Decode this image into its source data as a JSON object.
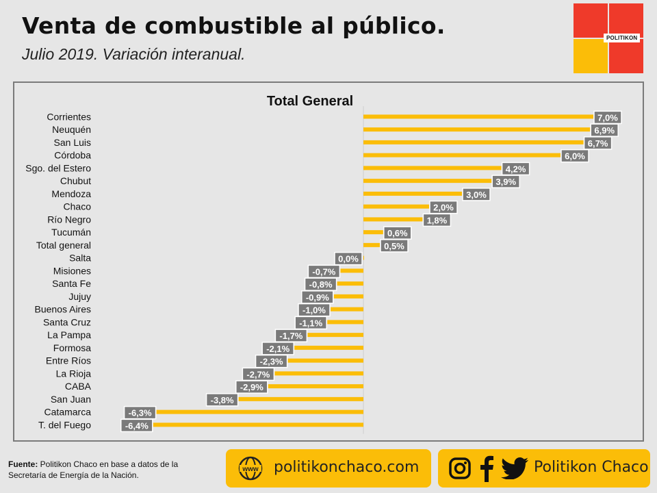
{
  "header": {
    "title": "Venta de combustible al público.",
    "subtitle": "Julio 2019. Variación interanual."
  },
  "logo": {
    "text": "POLITIKON"
  },
  "chart_data": {
    "type": "bar",
    "orientation": "horizontal",
    "title": "Total General",
    "categories": [
      "Corrientes",
      "Neuquén",
      "San Luis",
      "Córdoba",
      "Sgo. del Estero",
      "Chubut",
      "Mendoza",
      "Chaco",
      "Río Negro",
      "Tucumán",
      "Total general",
      "Salta",
      "Misiones",
      "Santa Fe",
      "Jujuy",
      "Buenos Aires",
      "Santa Cruz",
      "La Pampa",
      "Formosa",
      "Entre Ríos",
      "La Rioja",
      "CABA",
      "San Juan",
      "Catamarca",
      "T. del Fuego"
    ],
    "values": [
      7.0,
      6.9,
      6.7,
      6.0,
      4.2,
      3.9,
      3.0,
      2.0,
      1.8,
      0.6,
      0.5,
      0.0,
      -0.7,
      -0.8,
      -0.9,
      -1.0,
      -1.1,
      -1.7,
      -2.1,
      -2.3,
      -2.7,
      -2.9,
      -3.8,
      -6.3,
      -6.4
    ],
    "labels": [
      "7,0%",
      "6,9%",
      "6,7%",
      "6,0%",
      "4,2%",
      "3,9%",
      "3,0%",
      "2,0%",
      "1,8%",
      "0,6%",
      "0,5%",
      "0,0%",
      "-0,7%",
      "-0,8%",
      "-0,9%",
      "-1,0%",
      "-1,1%",
      "-1,7%",
      "-2,1%",
      "-2,3%",
      "-2,7%",
      "-2,9%",
      "-3,8%",
      "-6,3%",
      "-6,4%"
    ],
    "xlim": [
      -7,
      7.2
    ],
    "bar_color": "#fbbd08",
    "label_bg": "#7a7a7a",
    "grid": false,
    "legend": "none"
  },
  "footer": {
    "source_label": "Fuente:",
    "source_text": " Politikon Chaco en base a datos de la Secretaría de Energía de la Nación.",
    "website_icon_text": "www",
    "website": "politikonchaco.com",
    "social": "Politikon Chaco",
    "accent": "#fbbd08"
  }
}
